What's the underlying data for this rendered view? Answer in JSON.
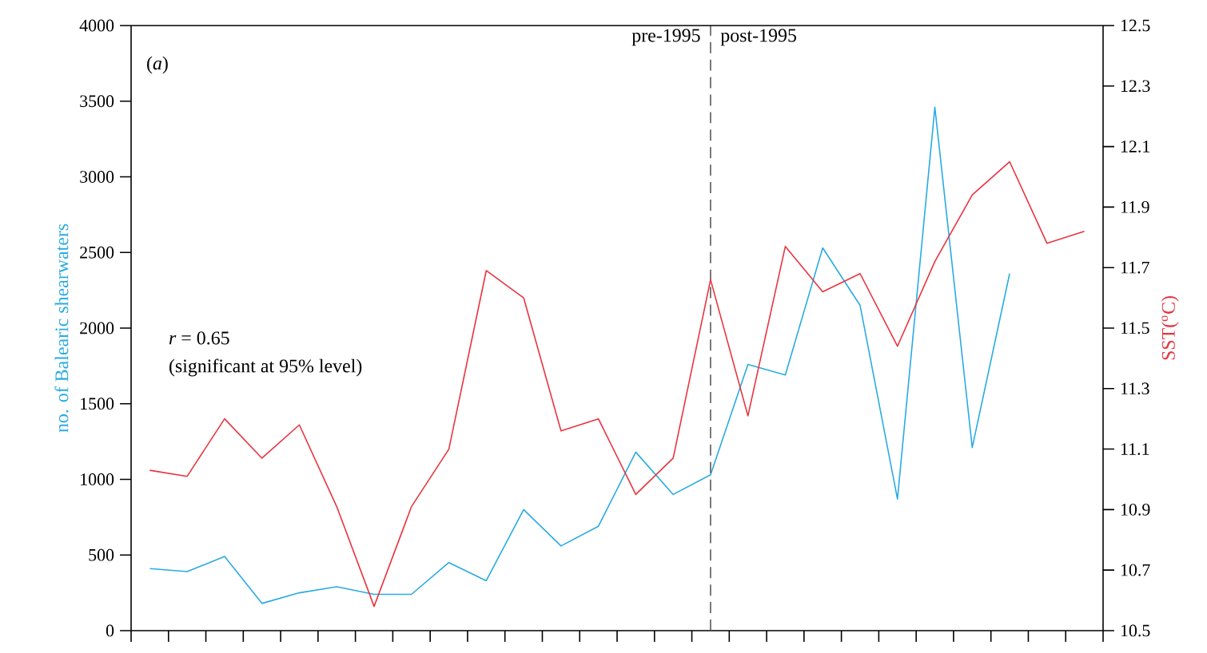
{
  "chart_data": {
    "type": "line",
    "ylabel": "no. of Balearic shearwaters",
    "y2label": "SST($^{o}$C)",
    "categories": [
      null,
      null,
      null,
      null,
      null,
      null,
      null,
      null,
      null,
      null,
      null,
      null,
      null,
      null,
      null,
      null,
      null,
      null,
      null,
      null,
      null,
      null,
      null,
      null,
      null,
      null
    ],
    "series": [
      {
        "color": "#29abe2",
        "values": [
          410,
          390,
          490,
          180,
          250,
          290,
          240,
          240,
          450,
          330,
          800,
          560,
          690,
          1180,
          900,
          1030,
          1760,
          1690,
          2530,
          2150,
          870,
          3460,
          1210,
          2360,
          null,
          null
        ]
      },
      {
        "color": "#e8343f",
        "axis": "y2",
        "values": [
          11.03,
          11.01,
          11.2,
          11.07,
          11.18,
          10.91,
          10.58,
          10.91,
          11.1,
          11.69,
          11.6,
          11.16,
          11.2,
          10.95,
          11.07,
          11.66,
          11.21,
          11.77,
          11.62,
          11.68,
          11.44,
          11.72,
          11.94,
          12.05,
          11.78,
          11.82
        ]
      }
    ],
    "ylim": [
      0,
      4000
    ],
    "yticks": [
      0,
      500,
      1000,
      1500,
      2000,
      2500,
      3000,
      3500,
      4000
    ],
    "y2lim": [
      10.5,
      12.5
    ],
    "y2ticks": [
      10.5,
      10.7,
      10.9,
      11.1,
      11.3,
      11.5,
      11.7,
      11.9,
      12.1,
      12.3,
      12.5
    ],
    "annotations": [
      "(*a*)",
      "*r* = 0.65",
      "(significant at 95% level)",
      "pre-1995",
      "post-1995"
    ]
  }
}
